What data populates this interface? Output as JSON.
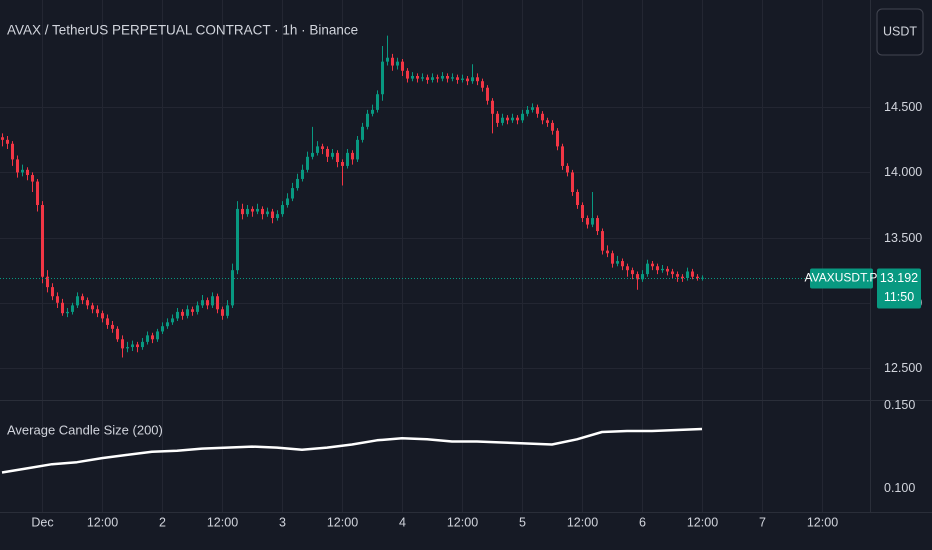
{
  "chart_data": {
    "type": "candlestick",
    "title": "AVAX / TetherUS PERPETUAL CONTRACT · 1h · Binance",
    "currency_button": "USDT",
    "symbol_label": "AVAXUSDT.P",
    "countdown": "11:50",
    "up_color": "#089981",
    "down_color": "#f23645",
    "grid": true,
    "xlim": [
      -0.4,
      173.6
    ],
    "xticks": [
      {
        "value": 8,
        "label": "Dec"
      },
      {
        "value": 20,
        "label": "12:00"
      },
      {
        "value": 32,
        "label": "2"
      },
      {
        "value": 44,
        "label": "12:00"
      },
      {
        "value": 56,
        "label": "3"
      },
      {
        "value": 68,
        "label": "12:00"
      },
      {
        "value": 80,
        "label": "4"
      },
      {
        "value": 92,
        "label": "12:00"
      },
      {
        "value": 104,
        "label": "5"
      },
      {
        "value": 116,
        "label": "12:00"
      },
      {
        "value": 128,
        "label": "6"
      },
      {
        "value": 140,
        "label": "12:00"
      },
      {
        "value": 152,
        "label": "7"
      },
      {
        "value": 164,
        "label": "12:00"
      }
    ],
    "ylim": [
      12.254,
      15.323
    ],
    "yticks": [
      {
        "value": 12.5,
        "label": "12.500"
      },
      {
        "value": 13,
        "label": "13.000"
      },
      {
        "value": 13.5,
        "label": "13.500"
      },
      {
        "value": 14,
        "label": "14.000"
      },
      {
        "value": 14.5,
        "label": "14.500"
      }
    ],
    "candles": [
      [
        14.27,
        14.3,
        14.2,
        14.25
      ],
      [
        14.25,
        14.28,
        14.18,
        14.22
      ],
      [
        14.22,
        14.24,
        14.05,
        14.1
      ],
      [
        14.1,
        14.13,
        13.96,
        14.0
      ],
      [
        14.0,
        14.06,
        13.97,
        14.02
      ],
      [
        14.02,
        14.04,
        13.94,
        13.98
      ],
      [
        13.98,
        14.0,
        13.85,
        13.93
      ],
      [
        13.93,
        13.95,
        13.7,
        13.75
      ],
      [
        13.75,
        13.78,
        13.15,
        13.2
      ],
      [
        13.2,
        13.25,
        13.08,
        13.12
      ],
      [
        13.12,
        13.15,
        13.02,
        13.05
      ],
      [
        13.05,
        13.08,
        12.96,
        13.0
      ],
      [
        13.0,
        13.03,
        12.9,
        12.92
      ],
      [
        12.92,
        12.96,
        12.89,
        12.93
      ],
      [
        12.93,
        13.0,
        12.91,
        12.98
      ],
      [
        12.98,
        13.08,
        12.96,
        13.05
      ],
      [
        13.05,
        13.07,
        12.99,
        13.02
      ],
      [
        13.02,
        13.04,
        12.95,
        12.98
      ],
      [
        12.98,
        13.0,
        12.92,
        12.95
      ],
      [
        12.95,
        12.98,
        12.89,
        12.92
      ],
      [
        12.92,
        12.94,
        12.85,
        12.88
      ],
      [
        12.88,
        12.91,
        12.8,
        12.83
      ],
      [
        12.83,
        12.86,
        12.77,
        12.8
      ],
      [
        12.8,
        12.82,
        12.7,
        12.72
      ],
      [
        12.72,
        12.75,
        12.58,
        12.65
      ],
      [
        12.65,
        12.7,
        12.62,
        12.66
      ],
      [
        12.66,
        12.71,
        12.63,
        12.68
      ],
      [
        12.68,
        12.7,
        12.62,
        12.66
      ],
      [
        12.66,
        12.73,
        12.64,
        12.7
      ],
      [
        12.7,
        12.78,
        12.68,
        12.75
      ],
      [
        12.75,
        12.77,
        12.69,
        12.72
      ],
      [
        12.72,
        12.8,
        12.7,
        12.78
      ],
      [
        12.78,
        12.85,
        12.76,
        12.82
      ],
      [
        12.82,
        12.88,
        12.8,
        12.85
      ],
      [
        12.85,
        12.91,
        12.83,
        12.88
      ],
      [
        12.88,
        12.96,
        12.86,
        12.93
      ],
      [
        12.93,
        12.95,
        12.87,
        12.9
      ],
      [
        12.9,
        12.98,
        12.88,
        12.95
      ],
      [
        12.95,
        12.97,
        12.9,
        12.93
      ],
      [
        12.93,
        13.01,
        12.91,
        12.98
      ],
      [
        12.98,
        13.06,
        12.96,
        13.02
      ],
      [
        13.02,
        13.04,
        12.95,
        12.98
      ],
      [
        12.98,
        13.08,
        12.96,
        13.05
      ],
      [
        13.05,
        13.07,
        12.92,
        12.95
      ],
      [
        12.95,
        12.97,
        12.87,
        12.9
      ],
      [
        12.9,
        13.02,
        12.88,
        12.98
      ],
      [
        12.98,
        13.3,
        12.96,
        13.25
      ],
      [
        13.25,
        13.78,
        13.22,
        13.72
      ],
      [
        13.72,
        13.76,
        13.64,
        13.68
      ],
      [
        13.68,
        13.75,
        13.66,
        13.72
      ],
      [
        13.72,
        13.74,
        13.66,
        13.7
      ],
      [
        13.7,
        13.76,
        13.68,
        13.72
      ],
      [
        13.72,
        13.74,
        13.64,
        13.68
      ],
      [
        13.68,
        13.73,
        13.66,
        13.7
      ],
      [
        13.7,
        13.72,
        13.61,
        13.65
      ],
      [
        13.65,
        13.71,
        13.63,
        13.68
      ],
      [
        13.68,
        13.78,
        13.66,
        13.75
      ],
      [
        13.75,
        13.84,
        13.73,
        13.8
      ],
      [
        13.8,
        13.92,
        13.78,
        13.88
      ],
      [
        13.88,
        13.99,
        13.86,
        13.95
      ],
      [
        13.95,
        14.06,
        13.93,
        14.02
      ],
      [
        14.02,
        14.16,
        14.0,
        14.12
      ],
      [
        14.12,
        14.35,
        14.1,
        14.15
      ],
      [
        14.15,
        14.24,
        14.13,
        14.2
      ],
      [
        14.2,
        14.22,
        14.14,
        14.18
      ],
      [
        14.18,
        14.2,
        14.08,
        14.12
      ],
      [
        14.12,
        14.18,
        14.1,
        14.15
      ],
      [
        14.15,
        14.17,
        14.04,
        14.08
      ],
      [
        14.08,
        14.1,
        13.9,
        14.05
      ],
      [
        14.05,
        14.18,
        14.03,
        14.15
      ],
      [
        14.15,
        14.17,
        14.06,
        14.1
      ],
      [
        14.1,
        14.28,
        14.08,
        14.25
      ],
      [
        14.25,
        14.38,
        14.23,
        14.35
      ],
      [
        14.35,
        14.48,
        14.33,
        14.45
      ],
      [
        14.45,
        14.52,
        14.43,
        14.48
      ],
      [
        14.48,
        14.63,
        14.46,
        14.6
      ],
      [
        14.6,
        14.97,
        14.55,
        14.85
      ],
      [
        14.85,
        15.05,
        14.82,
        14.88
      ],
      [
        14.88,
        14.91,
        14.78,
        14.82
      ],
      [
        14.82,
        14.88,
        14.79,
        14.85
      ],
      [
        14.85,
        14.87,
        14.74,
        14.78
      ],
      [
        14.78,
        14.8,
        14.69,
        14.72
      ],
      [
        14.72,
        14.77,
        14.7,
        14.74
      ],
      [
        14.74,
        14.76,
        14.69,
        14.72
      ],
      [
        14.72,
        14.76,
        14.7,
        14.73
      ],
      [
        14.73,
        14.75,
        14.68,
        14.71
      ],
      [
        14.71,
        14.76,
        14.69,
        14.73
      ],
      [
        14.73,
        14.75,
        14.69,
        14.72
      ],
      [
        14.72,
        14.77,
        14.7,
        14.74
      ],
      [
        14.74,
        14.76,
        14.69,
        14.72
      ],
      [
        14.72,
        14.76,
        14.7,
        14.73
      ],
      [
        14.73,
        14.75,
        14.68,
        14.71
      ],
      [
        14.71,
        14.75,
        14.69,
        14.72
      ],
      [
        14.72,
        14.74,
        14.67,
        14.7
      ],
      [
        14.7,
        14.83,
        14.68,
        14.73
      ],
      [
        14.73,
        14.76,
        14.67,
        14.7
      ],
      [
        14.7,
        14.72,
        14.62,
        14.65
      ],
      [
        14.65,
        14.67,
        14.52,
        14.55
      ],
      [
        14.55,
        14.57,
        14.3,
        14.45
      ],
      [
        14.45,
        14.47,
        14.35,
        14.38
      ],
      [
        14.38,
        14.45,
        14.36,
        14.42
      ],
      [
        14.42,
        14.44,
        14.37,
        14.4
      ],
      [
        14.4,
        14.45,
        14.38,
        14.42
      ],
      [
        14.42,
        14.44,
        14.37,
        14.4
      ],
      [
        14.4,
        14.48,
        14.38,
        14.45
      ],
      [
        14.45,
        14.51,
        14.43,
        14.48
      ],
      [
        14.48,
        14.53,
        14.46,
        14.5
      ],
      [
        14.5,
        14.52,
        14.42,
        14.45
      ],
      [
        14.45,
        14.47,
        14.37,
        14.4
      ],
      [
        14.4,
        14.42,
        14.35,
        14.38
      ],
      [
        14.38,
        14.4,
        14.29,
        14.32
      ],
      [
        14.32,
        14.34,
        14.17,
        14.2
      ],
      [
        14.2,
        14.22,
        14.02,
        14.05
      ],
      [
        14.05,
        14.07,
        13.97,
        14.0
      ],
      [
        14.0,
        14.02,
        13.82,
        13.85
      ],
      [
        13.85,
        13.87,
        13.72,
        13.75
      ],
      [
        13.75,
        13.77,
        13.62,
        13.65
      ],
      [
        13.65,
        13.67,
        13.57,
        13.6
      ],
      [
        13.6,
        13.85,
        13.58,
        13.65
      ],
      [
        13.65,
        13.67,
        13.52,
        13.55
      ],
      [
        13.55,
        13.57,
        13.37,
        13.4
      ],
      [
        13.4,
        13.44,
        13.35,
        13.38
      ],
      [
        13.38,
        13.4,
        13.27,
        13.3
      ],
      [
        13.3,
        13.36,
        13.28,
        13.32
      ],
      [
        13.32,
        13.34,
        13.25,
        13.28
      ],
      [
        13.28,
        13.3,
        13.2,
        13.25
      ],
      [
        13.25,
        13.27,
        13.18,
        13.22
      ],
      [
        13.22,
        13.24,
        13.1,
        13.18
      ],
      [
        13.18,
        13.25,
        13.16,
        13.22
      ],
      [
        13.22,
        13.33,
        13.2,
        13.3
      ],
      [
        13.3,
        13.32,
        13.25,
        13.28
      ],
      [
        13.28,
        13.3,
        13.22,
        13.25
      ],
      [
        13.25,
        13.29,
        13.23,
        13.26
      ],
      [
        13.26,
        13.28,
        13.21,
        13.24
      ],
      [
        13.24,
        13.26,
        13.19,
        13.22
      ],
      [
        13.22,
        13.24,
        13.16,
        13.2
      ],
      [
        13.2,
        13.22,
        13.16,
        13.19
      ],
      [
        13.19,
        13.27,
        13.17,
        13.24
      ],
      [
        13.24,
        13.26,
        13.18,
        13.2
      ],
      [
        13.2,
        13.22,
        13.17,
        13.19
      ],
      [
        13.19,
        13.21,
        13.17,
        13.192
      ]
    ],
    "indicator": {
      "name": "Average Candle Size (200)",
      "color": "#ffffff",
      "ylim": [
        0.0856,
        0.1525
      ],
      "yticks": [
        {
          "value": 0.15,
          "label": "0.150"
        },
        {
          "value": 0.1,
          "label": "0.100"
        }
      ],
      "x": [
        0,
        5,
        10,
        15,
        20,
        25,
        30,
        35,
        40,
        45,
        50,
        55,
        60,
        65,
        70,
        75,
        80,
        85,
        90,
        95,
        100,
        105,
        110,
        115,
        120,
        125,
        130,
        135,
        140
      ],
      "values": [
        0.1094,
        0.1119,
        0.1144,
        0.1156,
        0.1181,
        0.12,
        0.1219,
        0.1225,
        0.1238,
        0.1244,
        0.125,
        0.1244,
        0.1231,
        0.1244,
        0.1263,
        0.1288,
        0.13,
        0.1294,
        0.1281,
        0.1281,
        0.1275,
        0.1269,
        0.1263,
        0.1294,
        0.1338,
        0.1344,
        0.1344,
        0.135,
        0.1356
      ]
    }
  }
}
